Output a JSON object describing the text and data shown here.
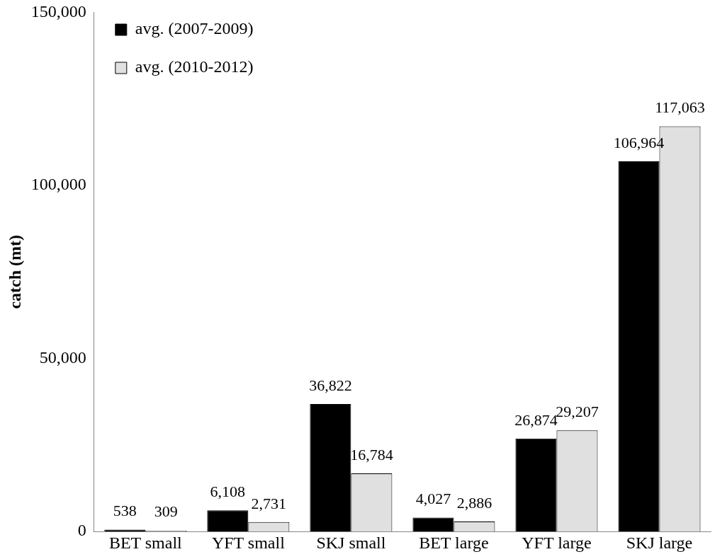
{
  "chart_data": {
    "type": "bar",
    "ylabel": "catch (mt)",
    "categories": [
      "BET small",
      "YFT small",
      "SKJ small",
      "BET large",
      "YFT large",
      "SKJ large"
    ],
    "series": [
      {
        "name": "avg. (2007-2009)",
        "color": "#000000",
        "values": [
          538,
          6108,
          36822,
          4027,
          26874,
          106964
        ],
        "value_labels": [
          "538",
          "6,108",
          "36,822",
          "4,027",
          "26,874",
          "106,964"
        ]
      },
      {
        "name": "avg. (2010-2012)",
        "color": "#e0e0e0",
        "values": [
          309,
          2731,
          16784,
          2886,
          29207,
          117063
        ],
        "value_labels": [
          "309",
          "2,731",
          "16,784",
          "2,886",
          "29,207",
          "117,063"
        ]
      }
    ],
    "ylim": [
      0,
      150000
    ],
    "yticks": [
      0,
      {
        "value": 50000,
        "label": "50,000"
      },
      {
        "value": 100000,
        "label": "100,000"
      },
      {
        "value": 150000,
        "label": "150,000"
      }
    ],
    "grid": false,
    "legend": "top left"
  }
}
